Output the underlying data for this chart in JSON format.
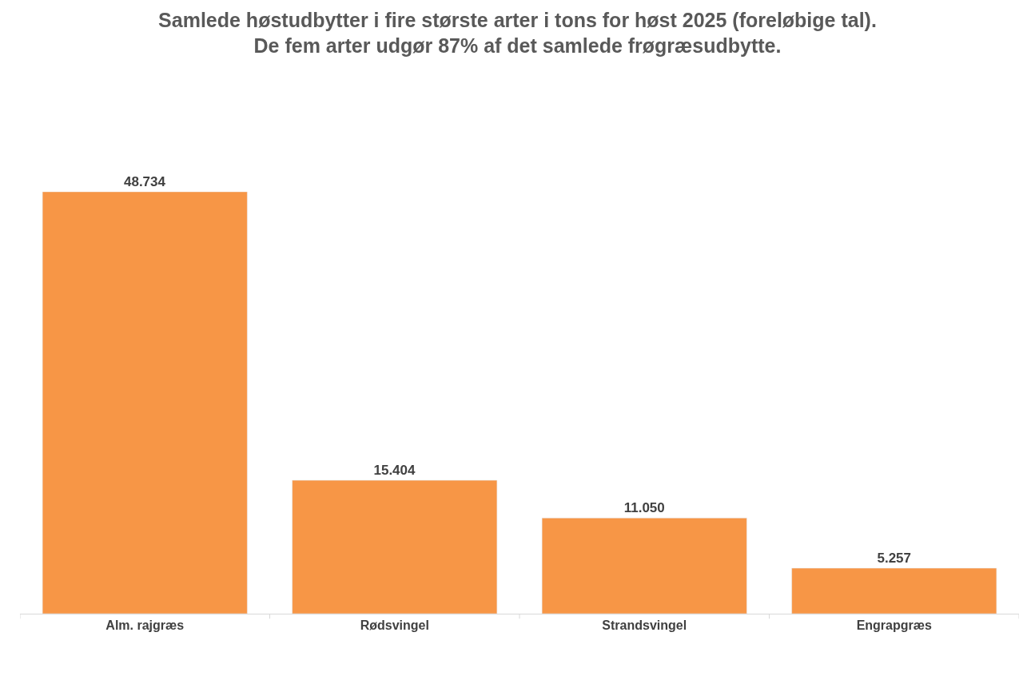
{
  "chart_data": {
    "type": "bar",
    "title": "Samlede høstudbytter i fire største arter i tons for høst 2025 (foreløbige tal).\nDe fem arter udgør 87% af det samlede frøgræsudbytte.",
    "categories": [
      "Alm. rajgræs",
      "Rødsvingel",
      "Strandsvingel",
      "Engrapgræs"
    ],
    "values": [
      48734,
      15404,
      11050,
      5257
    ],
    "value_labels": [
      "48.734",
      "15.404",
      "11.050",
      "5.257"
    ],
    "color": "#f79646",
    "tick_labels": "x"
  }
}
